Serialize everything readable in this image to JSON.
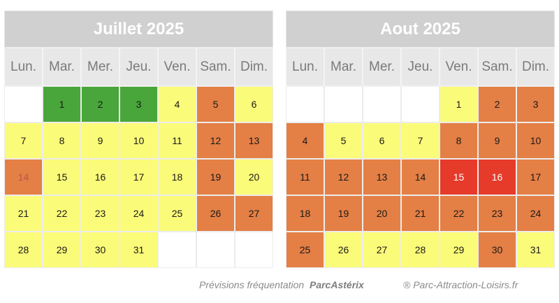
{
  "calendars": [
    {
      "title": "Juillet 2025",
      "weekdays": [
        "Lun.",
        "Mar.",
        "Mer.",
        "Jeu.",
        "Ven.",
        "Sam.",
        "Dim."
      ],
      "days": [
        {
          "label": "",
          "level": "empty"
        },
        {
          "label": "1",
          "level": "green"
        },
        {
          "label": "2",
          "level": "green"
        },
        {
          "label": "3",
          "level": "green"
        },
        {
          "label": "4",
          "level": "yellow"
        },
        {
          "label": "5",
          "level": "orange"
        },
        {
          "label": "6",
          "level": "yellow"
        },
        {
          "label": "7",
          "level": "yellow"
        },
        {
          "label": "8",
          "level": "yellow"
        },
        {
          "label": "9",
          "level": "yellow"
        },
        {
          "label": "10",
          "level": "yellow"
        },
        {
          "label": "11",
          "level": "yellow"
        },
        {
          "label": "12",
          "level": "orange"
        },
        {
          "label": "13",
          "level": "orange"
        },
        {
          "label": "14",
          "level": "orange",
          "holiday": true
        },
        {
          "label": "15",
          "level": "yellow"
        },
        {
          "label": "16",
          "level": "yellow"
        },
        {
          "label": "17",
          "level": "yellow"
        },
        {
          "label": "18",
          "level": "yellow"
        },
        {
          "label": "19",
          "level": "orange"
        },
        {
          "label": "20",
          "level": "yellow"
        },
        {
          "label": "21",
          "level": "yellow"
        },
        {
          "label": "22",
          "level": "yellow"
        },
        {
          "label": "23",
          "level": "yellow"
        },
        {
          "label": "24",
          "level": "yellow"
        },
        {
          "label": "25",
          "level": "yellow"
        },
        {
          "label": "26",
          "level": "orange"
        },
        {
          "label": "27",
          "level": "orange"
        },
        {
          "label": "28",
          "level": "yellow"
        },
        {
          "label": "29",
          "level": "yellow"
        },
        {
          "label": "30",
          "level": "yellow"
        },
        {
          "label": "31",
          "level": "yellow"
        },
        {
          "label": "",
          "level": "empty"
        },
        {
          "label": "",
          "level": "empty"
        },
        {
          "label": "",
          "level": "empty"
        }
      ]
    },
    {
      "title": "Aout 2025",
      "weekdays": [
        "Lun.",
        "Mar.",
        "Mer.",
        "Jeu.",
        "Ven.",
        "Sam.",
        "Dim."
      ],
      "days": [
        {
          "label": "",
          "level": "empty"
        },
        {
          "label": "",
          "level": "empty"
        },
        {
          "label": "",
          "level": "empty"
        },
        {
          "label": "",
          "level": "empty"
        },
        {
          "label": "1",
          "level": "yellow"
        },
        {
          "label": "2",
          "level": "orange"
        },
        {
          "label": "3",
          "level": "orange"
        },
        {
          "label": "4",
          "level": "orange"
        },
        {
          "label": "5",
          "level": "yellow"
        },
        {
          "label": "6",
          "level": "yellow"
        },
        {
          "label": "7",
          "level": "yellow"
        },
        {
          "label": "8",
          "level": "orange"
        },
        {
          "label": "9",
          "level": "orange"
        },
        {
          "label": "10",
          "level": "orange"
        },
        {
          "label": "11",
          "level": "orange"
        },
        {
          "label": "12",
          "level": "orange"
        },
        {
          "label": "13",
          "level": "orange"
        },
        {
          "label": "14",
          "level": "orange"
        },
        {
          "label": "15",
          "level": "red"
        },
        {
          "label": "16",
          "level": "red"
        },
        {
          "label": "17",
          "level": "orange"
        },
        {
          "label": "18",
          "level": "orange"
        },
        {
          "label": "19",
          "level": "orange"
        },
        {
          "label": "20",
          "level": "orange"
        },
        {
          "label": "21",
          "level": "orange"
        },
        {
          "label": "22",
          "level": "orange"
        },
        {
          "label": "23",
          "level": "orange"
        },
        {
          "label": "24",
          "level": "orange"
        },
        {
          "label": "25",
          "level": "orange"
        },
        {
          "label": "26",
          "level": "yellow"
        },
        {
          "label": "27",
          "level": "yellow"
        },
        {
          "label": "28",
          "level": "yellow"
        },
        {
          "label": "29",
          "level": "yellow"
        },
        {
          "label": "30",
          "level": "orange"
        },
        {
          "label": "31",
          "level": "yellow"
        }
      ]
    }
  ],
  "footer": {
    "caption": "Prévisions fréquentation",
    "brand": "ParcAstérix",
    "credit": "® Parc-Attraction-Loisirs.fr"
  },
  "colors": {
    "green": "#49a63a",
    "yellow": "#fbfb7a",
    "orange": "#e47f45",
    "red": "#e63a2a",
    "header_bg": "#d0d0d0",
    "weekday_bg": "#e8e8e8"
  }
}
